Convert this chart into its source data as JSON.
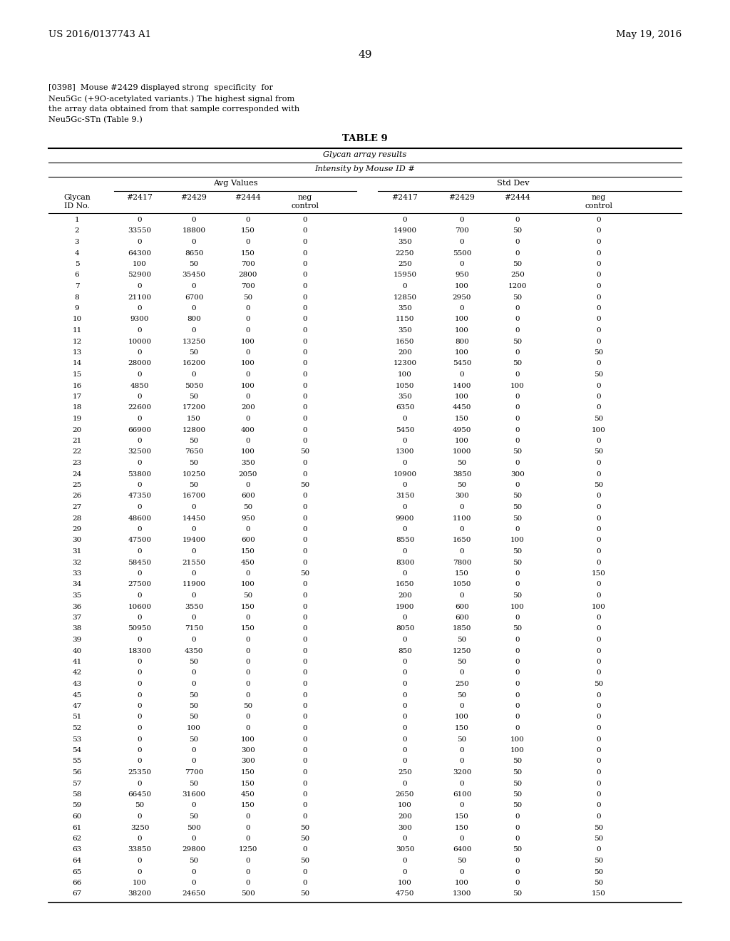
{
  "header_left": "US 2016/0137743 A1",
  "header_right": "May 19, 2016",
  "page_number": "49",
  "para_lines": [
    "[0398]  Mouse #2429 displayed strong  specificity  for",
    "Neu5Gc (+9O-acetylated variants.) The highest signal from",
    "the array data obtained from that sample corresponded with",
    "Neu5Gc-STn (Table 9.)"
  ],
  "table_title": "TABLE 9",
  "subtitle1": "Glycan array results",
  "subtitle2": "Intensity by Mouse ID #",
  "col_group1": "Avg Values",
  "col_group2": "Std Dev",
  "rows": [
    [
      1,
      0,
      0,
      0,
      0,
      0,
      0,
      0,
      0
    ],
    [
      2,
      33550,
      18800,
      150,
      0,
      14900,
      700,
      50,
      0
    ],
    [
      3,
      0,
      0,
      0,
      0,
      350,
      0,
      0,
      0
    ],
    [
      4,
      64300,
      8650,
      150,
      0,
      2250,
      5500,
      0,
      0
    ],
    [
      5,
      100,
      50,
      700,
      0,
      250,
      0,
      50,
      0
    ],
    [
      6,
      52900,
      35450,
      2800,
      0,
      15950,
      950,
      250,
      0
    ],
    [
      7,
      0,
      0,
      700,
      0,
      0,
      100,
      1200,
      0
    ],
    [
      8,
      21100,
      6700,
      50,
      0,
      12850,
      2950,
      50,
      0
    ],
    [
      9,
      0,
      0,
      0,
      0,
      350,
      0,
      0,
      0
    ],
    [
      10,
      9300,
      800,
      0,
      0,
      1150,
      100,
      0,
      0
    ],
    [
      11,
      0,
      0,
      0,
      0,
      350,
      100,
      0,
      0
    ],
    [
      12,
      10000,
      13250,
      100,
      0,
      1650,
      800,
      50,
      0
    ],
    [
      13,
      0,
      50,
      0,
      0,
      200,
      100,
      0,
      50
    ],
    [
      14,
      28000,
      16200,
      100,
      0,
      12300,
      5450,
      50,
      0
    ],
    [
      15,
      0,
      0,
      0,
      0,
      100,
      0,
      0,
      50
    ],
    [
      16,
      4850,
      5050,
      100,
      0,
      1050,
      1400,
      100,
      0
    ],
    [
      17,
      0,
      50,
      0,
      0,
      350,
      100,
      0,
      0
    ],
    [
      18,
      22600,
      17200,
      200,
      0,
      6350,
      4450,
      0,
      0
    ],
    [
      19,
      0,
      150,
      0,
      0,
      0,
      150,
      0,
      50
    ],
    [
      20,
      66900,
      12800,
      400,
      0,
      5450,
      4950,
      0,
      100
    ],
    [
      21,
      0,
      50,
      0,
      0,
      0,
      100,
      0,
      0
    ],
    [
      22,
      32500,
      7650,
      100,
      50,
      1300,
      1000,
      50,
      50
    ],
    [
      23,
      0,
      50,
      350,
      0,
      0,
      50,
      0,
      0
    ],
    [
      24,
      53800,
      10250,
      2050,
      0,
      10900,
      3850,
      300,
      0
    ],
    [
      25,
      0,
      50,
      0,
      50,
      0,
      50,
      0,
      50
    ],
    [
      26,
      47350,
      16700,
      600,
      0,
      3150,
      300,
      50,
      0
    ],
    [
      27,
      0,
      0,
      50,
      0,
      0,
      0,
      50,
      0
    ],
    [
      28,
      48600,
      14450,
      950,
      0,
      9900,
      1100,
      50,
      0
    ],
    [
      29,
      0,
      0,
      0,
      0,
      0,
      0,
      0,
      0
    ],
    [
      30,
      47500,
      19400,
      600,
      0,
      8550,
      1650,
      100,
      0
    ],
    [
      31,
      0,
      0,
      150,
      0,
      0,
      0,
      50,
      0
    ],
    [
      32,
      58450,
      21550,
      450,
      0,
      8300,
      7800,
      50,
      0
    ],
    [
      33,
      0,
      0,
      0,
      50,
      0,
      150,
      0,
      150
    ],
    [
      34,
      27500,
      11900,
      100,
      0,
      1650,
      1050,
      0,
      0
    ],
    [
      35,
      0,
      0,
      50,
      0,
      200,
      0,
      50,
      0
    ],
    [
      36,
      10600,
      3550,
      150,
      0,
      1900,
      600,
      100,
      100
    ],
    [
      37,
      0,
      0,
      0,
      0,
      0,
      600,
      0,
      0
    ],
    [
      38,
      50950,
      7150,
      150,
      0,
      8050,
      1850,
      50,
      0
    ],
    [
      39,
      0,
      0,
      0,
      0,
      0,
      50,
      0,
      0
    ],
    [
      40,
      18300,
      4350,
      0,
      0,
      850,
      1250,
      0,
      0
    ],
    [
      41,
      0,
      50,
      0,
      0,
      0,
      50,
      0,
      0
    ],
    [
      42,
      0,
      0,
      0,
      0,
      0,
      0,
      0,
      0
    ],
    [
      43,
      0,
      0,
      0,
      0,
      0,
      250,
      0,
      50
    ],
    [
      45,
      0,
      50,
      0,
      0,
      0,
      50,
      0,
      0
    ],
    [
      47,
      0,
      50,
      50,
      0,
      0,
      0,
      0,
      0
    ],
    [
      51,
      0,
      50,
      0,
      0,
      0,
      100,
      0,
      0
    ],
    [
      52,
      0,
      100,
      0,
      0,
      0,
      150,
      0,
      0
    ],
    [
      53,
      0,
      50,
      100,
      0,
      0,
      50,
      100,
      0
    ],
    [
      54,
      0,
      0,
      300,
      0,
      0,
      0,
      100,
      0
    ],
    [
      55,
      0,
      0,
      300,
      0,
      0,
      0,
      50,
      0
    ],
    [
      56,
      25350,
      7700,
      150,
      0,
      250,
      3200,
      50,
      0
    ],
    [
      57,
      0,
      50,
      150,
      0,
      0,
      0,
      50,
      0
    ],
    [
      58,
      66450,
      31600,
      450,
      0,
      2650,
      6100,
      50,
      0
    ],
    [
      59,
      50,
      0,
      150,
      0,
      100,
      0,
      50,
      0
    ],
    [
      60,
      0,
      50,
      0,
      0,
      200,
      150,
      0,
      0
    ],
    [
      61,
      3250,
      500,
      0,
      50,
      300,
      150,
      0,
      50
    ],
    [
      62,
      0,
      0,
      0,
      50,
      0,
      0,
      0,
      50
    ],
    [
      63,
      33850,
      29800,
      1250,
      0,
      3050,
      6400,
      50,
      0
    ],
    [
      64,
      0,
      50,
      0,
      50,
      0,
      50,
      0,
      50
    ],
    [
      65,
      0,
      0,
      0,
      0,
      0,
      0,
      0,
      50
    ],
    [
      66,
      100,
      0,
      0,
      0,
      100,
      100,
      0,
      50
    ],
    [
      67,
      38200,
      24650,
      500,
      50,
      4750,
      1300,
      50,
      150
    ]
  ]
}
